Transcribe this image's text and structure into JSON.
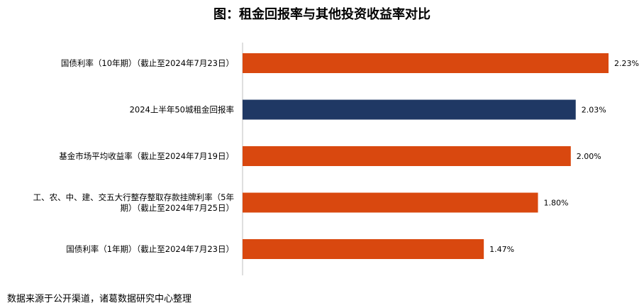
{
  "chart_data": {
    "type": "bar",
    "orientation": "horizontal",
    "title": "图：租金回报率与其他投资收益率对比",
    "categories": [
      [
        "国债利率（10年期）（截止至2024年7月23日）"
      ],
      [
        "2024上半年50城租金回报率"
      ],
      [
        "基金市场平均收益率（截止至2024年7月19日）"
      ],
      [
        "工、农、中、建、交五大行整存整取存款挂牌利率（5年",
        "期）（截止至2024年7月25日）"
      ],
      [
        "国债利率（1年期）（截止至2024年7月23日）"
      ]
    ],
    "values": [
      2.23,
      2.03,
      2.0,
      1.8,
      1.47
    ],
    "value_labels": [
      "2.23%",
      "2.03%",
      "2.00%",
      "1.80%",
      "1.47%"
    ],
    "bar_colors": [
      "#D9480F",
      "#1F3864",
      "#D9480F",
      "#D9480F",
      "#D9480F"
    ],
    "unit": "%",
    "xlim": [
      0,
      2.23
    ],
    "grid": false,
    "legend": "none"
  },
  "source": "数据来源于公开渠道，诸葛数据研究中心整理"
}
